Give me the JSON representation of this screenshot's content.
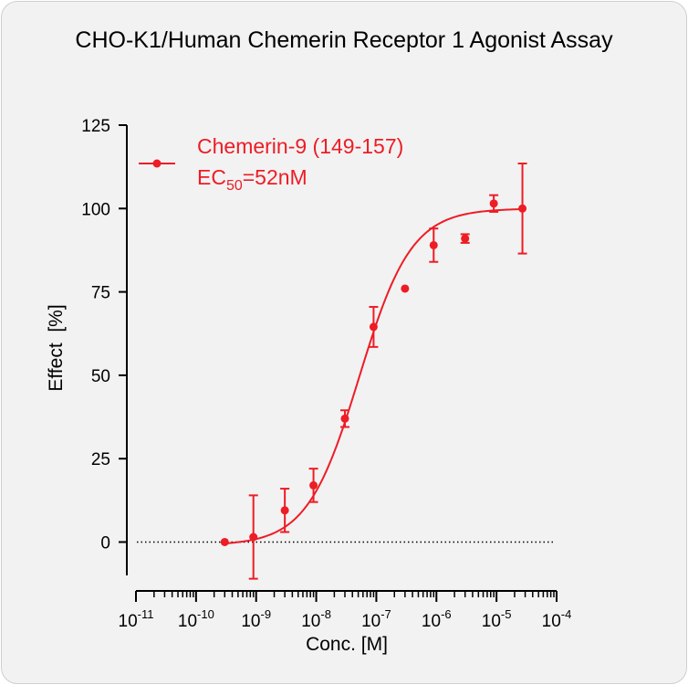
{
  "title": "CHO-K1/Human Chemerin Receptor 1 Agonist Assay",
  "colors": {
    "series": "#ee1c25",
    "axis": "#000000",
    "background": "#f2f2f2"
  },
  "chart_data": {
    "type": "scatter",
    "title": "CHO-K1/Human Chemerin Receptor 1 Agonist Assay",
    "xlabel": "Conc. [M]",
    "ylabel": "Effect  [%]",
    "xscale": "log",
    "xlim": [
      1e-11,
      0.0001
    ],
    "ylim": [
      -10,
      125
    ],
    "x_ticks": [
      {
        "base": "10",
        "exp": "-11"
      },
      {
        "base": "10",
        "exp": "-10"
      },
      {
        "base": "10",
        "exp": "-9"
      },
      {
        "base": "10",
        "exp": "-8"
      },
      {
        "base": "10",
        "exp": "-7"
      },
      {
        "base": "10",
        "exp": "-6"
      },
      {
        "base": "10",
        "exp": "-5"
      },
      {
        "base": "10",
        "exp": "-4"
      }
    ],
    "y_ticks": [
      "0",
      "25",
      "50",
      "75",
      "100",
      "125"
    ],
    "grid": false,
    "zero_line": "dotted",
    "legend": {
      "placement": "top-left",
      "series_label": "Chemerin-9 (149-157)",
      "ec_prefix": "EC",
      "ec_sub": "50",
      "ec_value": "=52nM"
    },
    "series": [
      {
        "name": "Chemerin-9 (149-157)",
        "points": [
          {
            "x": 3e-10,
            "y": 0,
            "err": 0
          },
          {
            "x": 9e-10,
            "y": 1.5,
            "err": 12.5
          },
          {
            "x": 3e-09,
            "y": 9.5,
            "err": 6.5
          },
          {
            "x": 9e-09,
            "y": 17,
            "err": 5
          },
          {
            "x": 3e-08,
            "y": 37,
            "err": 2.5
          },
          {
            "x": 9e-08,
            "y": 64.5,
            "err": 6
          },
          {
            "x": 3e-07,
            "y": 76,
            "err": 0
          },
          {
            "x": 9e-07,
            "y": 89,
            "err": 5
          },
          {
            "x": 3e-06,
            "y": 91,
            "err": 1.3
          },
          {
            "x": 9e-06,
            "y": 101.5,
            "err": 2.5
          },
          {
            "x": 2.7e-05,
            "y": 100,
            "err": 13.5
          }
        ],
        "fit": {
          "model": "4PL",
          "bottom": -1,
          "top": 100,
          "ec50": 5.2e-08,
          "hill": 1.0,
          "x_from": 3e-10,
          "x_to": 2.7e-05
        }
      }
    ]
  }
}
